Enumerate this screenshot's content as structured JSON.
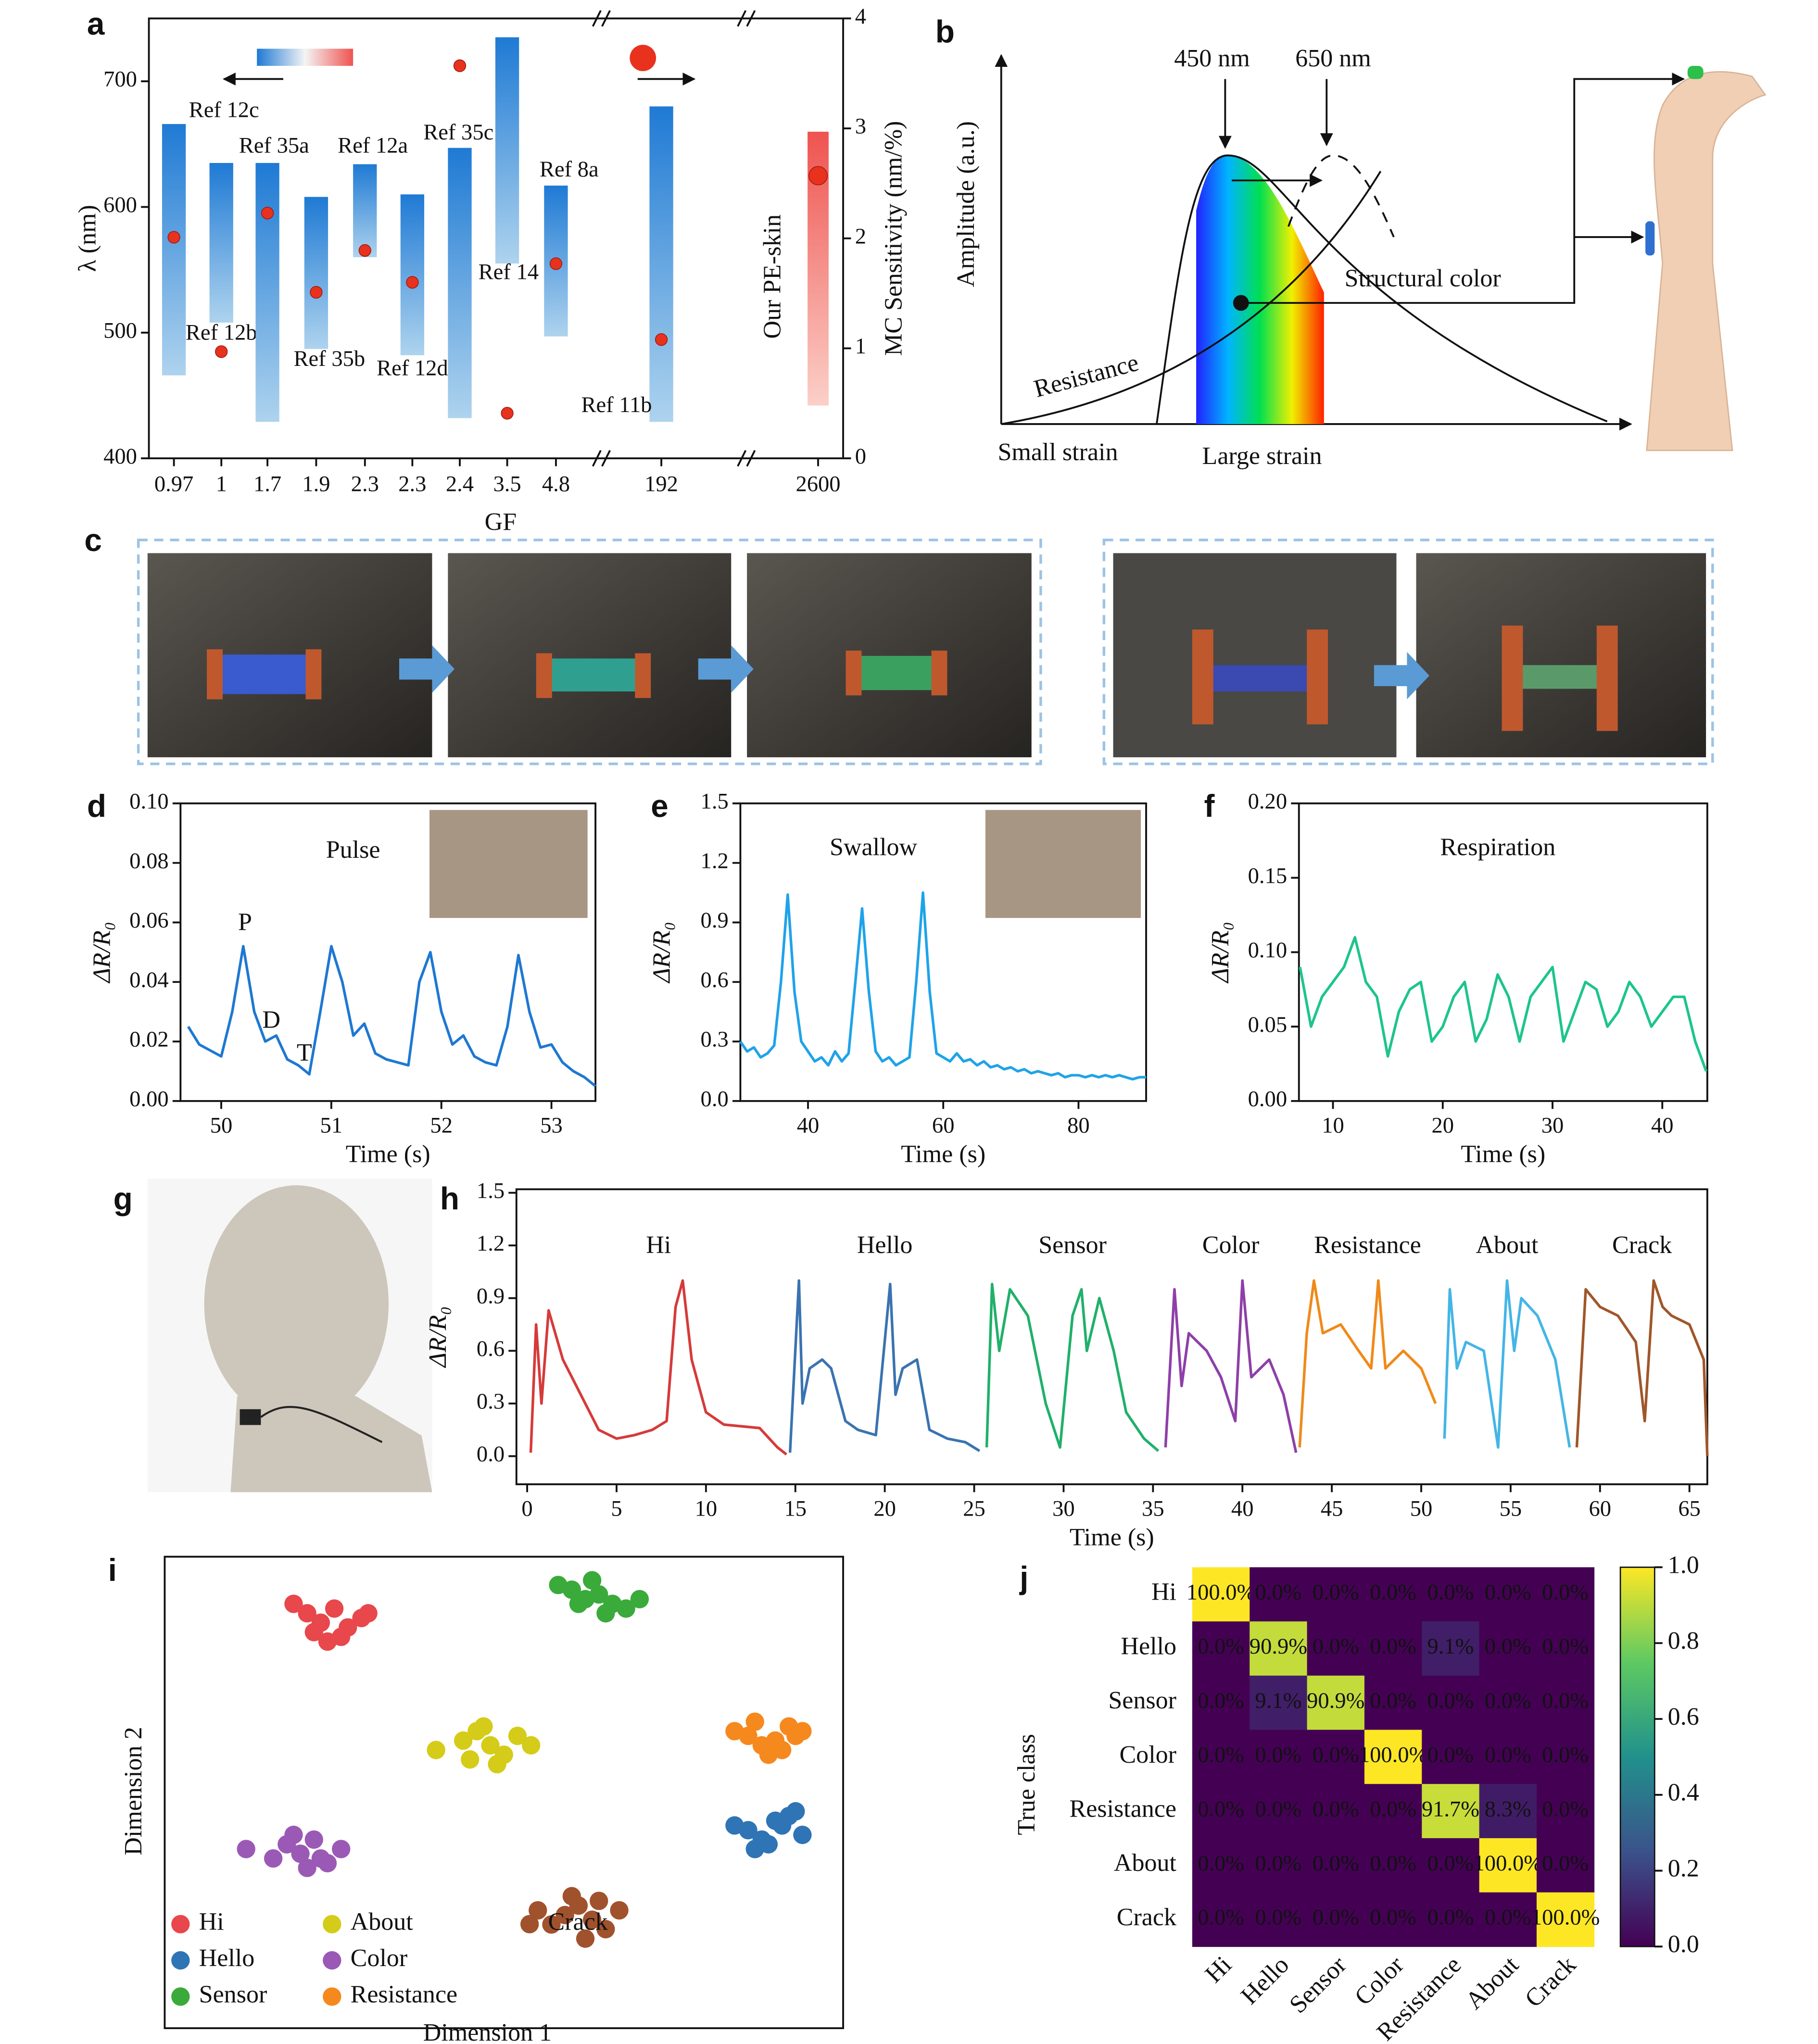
{
  "schematic": {
    "panel": "b",
    "y_label": "Amplitude (a.u.)",
    "peak_labels": [
      "450 nm",
      "650 nm"
    ],
    "curve_labels": [
      "Resistance",
      "Structural color"
    ],
    "x_labels": [
      "Small strain",
      "Large strain"
    ]
  },
  "photos": {
    "panel": "c"
  },
  "render": {
    "panel": "g"
  },
  "chart_data": [
    {
      "type": "range_bar",
      "panel": "a",
      "x_label": "GF",
      "y_label": "λ (nm)",
      "y2_label": "MC Sensitivity (nm/%)",
      "categories": [
        "0.97",
        "1",
        "1.7",
        "1.9",
        "2.3",
        "2.3",
        "2.4",
        "3.5",
        "4.8",
        "192",
        "2600"
      ],
      "low": [
        466,
        508,
        429,
        487,
        560,
        482,
        432,
        555,
        497,
        429,
        null
      ],
      "high": [
        666,
        635,
        635,
        608,
        634,
        610,
        647,
        735,
        617,
        680,
        null
      ],
      "bar_labels": [
        "Ref 12c",
        "Ref 12b",
        "Ref 35a",
        "Ref 35b",
        "Ref 12a",
        "Ref 12d",
        "Ref 35c",
        "Ref 14",
        "Ref 8a",
        "Ref 11b",
        null
      ],
      "sensitivity": {
        "axis": "y2",
        "values": [
          2.01,
          0.97,
          2.23,
          1.51,
          1.89,
          1.6,
          3.57,
          0.41,
          1.77,
          1.08,
          2.57
        ]
      },
      "our_range": {
        "name": "Our PE-skin",
        "axis": "y2",
        "low": 0.48,
        "high": 2.97
      },
      "ylim": [
        400,
        750
      ],
      "yticks": [
        400,
        500,
        600,
        700
      ],
      "y2lim": [
        0,
        4
      ],
      "y2ticks": [
        0,
        1,
        2,
        3,
        4
      ],
      "bar_color": "#1f7ad4",
      "dot_color": "#e8321e",
      "our_color": "#ef5350"
    },
    {
      "type": "line",
      "panel": "d",
      "title": "Pulse",
      "annotations": [
        "P",
        "D",
        "T"
      ],
      "x_label": "Time (s)",
      "y_label": "ΔR/R₀",
      "color": "#1e78d2",
      "x": [
        49.7,
        49.8,
        49.9,
        50.0,
        50.1,
        50.2,
        50.3,
        50.4,
        50.5,
        50.6,
        50.7,
        50.8,
        50.9,
        51.0,
        51.1,
        51.2,
        51.3,
        51.4,
        51.5,
        51.6,
        51.7,
        51.8,
        51.9,
        52.0,
        52.1,
        52.2,
        52.3,
        52.4,
        52.5,
        52.6,
        52.7,
        52.8,
        52.9,
        53.0,
        53.1,
        53.2,
        53.3,
        53.4
      ],
      "values": [
        0.025,
        0.019,
        0.017,
        0.015,
        0.03,
        0.052,
        0.03,
        0.02,
        0.022,
        0.014,
        0.012,
        0.009,
        0.03,
        0.052,
        0.04,
        0.022,
        0.026,
        0.016,
        0.014,
        0.013,
        0.012,
        0.04,
        0.05,
        0.03,
        0.019,
        0.022,
        0.015,
        0.013,
        0.012,
        0.025,
        0.049,
        0.03,
        0.018,
        0.019,
        0.013,
        0.01,
        0.008,
        0.005
      ],
      "xlim": [
        49.63,
        53.4
      ],
      "xticks": [
        50,
        51,
        52,
        53
      ],
      "ylim": [
        0,
        0.1
      ],
      "yticks": [
        {
          "value": 0,
          "label": "0.00"
        },
        0.02,
        0.04,
        0.06,
        0.08,
        {
          "value": 0.1,
          "label": "0.10"
        }
      ]
    },
    {
      "type": "line",
      "panel": "e",
      "title": "Swallow",
      "x_label": "Time (s)",
      "y_label": "ΔR/R₀",
      "color": "#1fa3e8",
      "x": [
        30,
        31,
        32,
        33,
        34,
        35,
        36,
        37,
        38,
        39,
        40,
        41,
        42,
        43,
        44,
        45,
        46,
        47,
        48,
        49,
        50,
        51,
        52,
        53,
        54,
        55,
        56,
        57,
        58,
        59,
        60,
        61,
        62,
        63,
        64,
        65,
        66,
        67,
        68,
        69,
        70,
        71,
        72,
        73,
        74,
        75,
        76,
        77,
        78,
        79,
        80,
        81,
        82,
        83,
        84,
        85,
        86,
        87,
        88,
        89,
        90
      ],
      "values": [
        0.3,
        0.25,
        0.27,
        0.22,
        0.24,
        0.28,
        0.6,
        1.04,
        0.55,
        0.3,
        0.25,
        0.2,
        0.22,
        0.18,
        0.25,
        0.2,
        0.24,
        0.6,
        0.97,
        0.55,
        0.25,
        0.2,
        0.22,
        0.18,
        0.2,
        0.22,
        0.6,
        1.05,
        0.55,
        0.24,
        0.22,
        0.2,
        0.24,
        0.2,
        0.21,
        0.18,
        0.2,
        0.17,
        0.18,
        0.16,
        0.17,
        0.15,
        0.16,
        0.14,
        0.15,
        0.14,
        0.13,
        0.14,
        0.12,
        0.13,
        0.13,
        0.12,
        0.13,
        0.12,
        0.13,
        0.12,
        0.13,
        0.12,
        0.11,
        0.12,
        0.12
      ],
      "xlim": [
        30,
        90
      ],
      "xticks": [
        40,
        60,
        80
      ],
      "ylim": [
        0,
        1.5
      ],
      "yticks": [
        {
          "value": 0,
          "label": "0.0"
        },
        0.3,
        0.6,
        0.9,
        1.2,
        1.5
      ]
    },
    {
      "type": "line",
      "panel": "f",
      "title": "Respiration",
      "x_label": "Time (s)",
      "y_label": "ΔR/R₀",
      "color": "#1dc58a",
      "x": [
        7,
        8,
        9,
        10,
        11,
        12,
        13,
        14,
        15,
        16,
        17,
        18,
        19,
        20,
        21,
        22,
        23,
        24,
        25,
        26,
        27,
        28,
        29,
        30,
        31,
        32,
        33,
        34,
        35,
        36,
        37,
        38,
        39,
        40,
        41,
        42,
        43,
        44
      ],
      "values": [
        0.09,
        0.05,
        0.07,
        0.08,
        0.09,
        0.11,
        0.08,
        0.07,
        0.03,
        0.06,
        0.075,
        0.08,
        0.04,
        0.05,
        0.07,
        0.08,
        0.04,
        0.055,
        0.085,
        0.07,
        0.04,
        0.07,
        0.08,
        0.09,
        0.04,
        0.06,
        0.08,
        0.075,
        0.05,
        0.06,
        0.08,
        0.07,
        0.05,
        0.06,
        0.07,
        0.07,
        0.04,
        0.02
      ],
      "xlim": [
        6.9,
        44.1
      ],
      "xticks": [
        10,
        20,
        30,
        40
      ],
      "ylim": [
        0,
        0.2
      ],
      "yticks": [
        {
          "value": 0,
          "label": "0.00"
        },
        0.05,
        {
          "value": 0.1,
          "label": "0.10"
        },
        0.15,
        {
          "value": 0.2,
          "label": "0.20"
        }
      ]
    },
    {
      "type": "line",
      "panel": "h",
      "x_label": "Time (s)",
      "y_label": "ΔR/R₀",
      "series": [
        {
          "name": "Hi",
          "color": "#d63a3a",
          "x": [
            0.2,
            0.5,
            0.8,
            1.2,
            2,
            3,
            4,
            5,
            6,
            7,
            7.8,
            8.3,
            8.7,
            9.2,
            10,
            11,
            12,
            13,
            14,
            14.5
          ],
          "values": [
            0.02,
            0.75,
            0.3,
            0.83,
            0.55,
            0.35,
            0.15,
            0.1,
            0.12,
            0.15,
            0.2,
            0.85,
            1.0,
            0.55,
            0.25,
            0.18,
            0.17,
            0.16,
            0.05,
            0.01
          ]
        },
        {
          "name": "Hello",
          "color": "#3a73b0",
          "x": [
            14.7,
            15.2,
            15.4,
            15.8,
            16.5,
            17,
            17.8,
            18.5,
            19.5,
            20.3,
            20.6,
            21,
            21.8,
            22.5,
            23.5,
            24.5,
            25.3
          ],
          "values": [
            0.02,
            1.0,
            0.3,
            0.5,
            0.55,
            0.5,
            0.2,
            0.15,
            0.12,
            0.98,
            0.35,
            0.5,
            0.55,
            0.15,
            0.1,
            0.08,
            0.03
          ]
        },
        {
          "name": "Sensor",
          "color": "#20b06a",
          "x": [
            25.7,
            26,
            26.4,
            27,
            28,
            29,
            29.8,
            30.5,
            31,
            31.3,
            32,
            32.8,
            33.5,
            34.5,
            35.3
          ],
          "values": [
            0.05,
            0.98,
            0.6,
            0.95,
            0.8,
            0.3,
            0.05,
            0.8,
            0.95,
            0.6,
            0.9,
            0.6,
            0.25,
            0.1,
            0.03
          ]
        },
        {
          "name": "Color",
          "color": "#8e3fa8",
          "x": [
            35.7,
            36.2,
            36.6,
            37,
            38,
            38.8,
            39.6,
            40,
            40.5,
            41.5,
            42.3,
            43
          ],
          "values": [
            0.05,
            0.95,
            0.4,
            0.7,
            0.6,
            0.45,
            0.2,
            1.0,
            0.45,
            0.55,
            0.35,
            0.02
          ]
        },
        {
          "name": "Resistance",
          "color": "#ef8a1a",
          "x": [
            43.2,
            43.6,
            44,
            44.5,
            45.5,
            46.5,
            47.2,
            47.6,
            48,
            49,
            50,
            50.8
          ],
          "values": [
            0.05,
            0.7,
            1.0,
            0.7,
            0.75,
            0.6,
            0.5,
            1.0,
            0.5,
            0.6,
            0.5,
            0.3
          ]
        },
        {
          "name": "About",
          "color": "#44b5e6",
          "x": [
            51.3,
            51.6,
            52,
            52.5,
            53.5,
            54.3,
            54.8,
            55.2,
            55.6,
            56.5,
            57.5,
            58.3
          ],
          "values": [
            0.1,
            0.95,
            0.5,
            0.65,
            0.6,
            0.05,
            1.0,
            0.6,
            0.9,
            0.8,
            0.55,
            0.05
          ]
        },
        {
          "name": "Crack",
          "color": "#a0562a",
          "x": [
            58.7,
            59.2,
            60,
            61,
            62,
            62.5,
            63,
            63.5,
            64,
            65,
            65.8,
            66.0
          ],
          "values": [
            0.05,
            0.95,
            0.85,
            0.8,
            0.65,
            0.2,
            1.0,
            0.85,
            0.8,
            0.75,
            0.55,
            0.0
          ]
        }
      ],
      "xlim": [
        -0.6,
        66.0
      ],
      "xticks": [
        0,
        5,
        10,
        15,
        20,
        25,
        30,
        35,
        40,
        45,
        50,
        55,
        60,
        65
      ],
      "ylim": [
        -0.16,
        1.52
      ],
      "yticks": [
        {
          "value": 0,
          "label": "0.0"
        },
        0.3,
        0.6,
        0.9,
        1.2,
        1.5
      ]
    },
    {
      "type": "scatter",
      "panel": "i",
      "x_label": "Dimension 1",
      "y_label": "Dimension 2",
      "xlim": [
        0,
        100
      ],
      "ylim": [
        0,
        100
      ],
      "series": [
        {
          "name": "Hi",
          "color": "#e8474b",
          "x": [
            19,
            21,
            23,
            25,
            27,
            29,
            22,
            26,
            30,
            24
          ],
          "values": [
            90,
            88,
            86,
            89,
            85,
            87,
            84,
            83,
            88,
            82
          ]
        },
        {
          "name": "Hello",
          "color": "#2f74b5",
          "x": [
            84,
            86,
            88,
            90,
            92,
            94,
            89,
            91,
            93,
            87
          ],
          "values": [
            43,
            42,
            40,
            44,
            45,
            41,
            39,
            43,
            46,
            38
          ]
        },
        {
          "name": "Sensor",
          "color": "#3aaa3a",
          "x": [
            58,
            60,
            62,
            64,
            66,
            68,
            63,
            65,
            70,
            61
          ],
          "values": [
            94,
            93,
            91,
            92,
            90,
            89,
            95,
            88,
            91,
            90
          ]
        },
        {
          "name": "About",
          "color": "#d4cc18",
          "x": [
            40,
            44,
            46,
            48,
            50,
            52,
            47,
            45,
            54,
            49
          ],
          "values": [
            59,
            61,
            63,
            60,
            58,
            62,
            64,
            57,
            60,
            56
          ]
        },
        {
          "name": "Color",
          "color": "#9b59b6",
          "x": [
            12,
            16,
            18,
            20,
            22,
            24,
            26,
            21,
            19,
            23
          ],
          "values": [
            38,
            36,
            39,
            37,
            40,
            35,
            38,
            34,
            41,
            36
          ]
        },
        {
          "name": "Resistance",
          "color": "#f5891e",
          "x": [
            84,
            86,
            88,
            90,
            92,
            94,
            89,
            91,
            87,
            93
          ],
          "values": [
            63,
            62,
            60,
            61,
            64,
            63,
            58,
            59,
            65,
            62
          ]
        },
        {
          "name": "Crack",
          "color": "#a0522d",
          "x": [
            55,
            57,
            59,
            61,
            63,
            65,
            67,
            60,
            62,
            64
          ],
          "values": [
            25,
            22,
            24,
            26,
            23,
            21,
            25,
            28,
            19,
            27
          ]
        }
      ]
    },
    {
      "type": "heatmap",
      "panel": "j",
      "y_label": "True class",
      "colormap": "viridis",
      "categories": [
        "Hi",
        "Hello",
        "Sensor",
        "Color",
        "Resistance",
        "About",
        "Crack"
      ],
      "values": [
        [
          1,
          0,
          0,
          0,
          0,
          0,
          0
        ],
        [
          0,
          0.909,
          0,
          0,
          0.091,
          0,
          0
        ],
        [
          0,
          0.091,
          0.909,
          0,
          0,
          0,
          0
        ],
        [
          0,
          0,
          0,
          1,
          0,
          0,
          0
        ],
        [
          0,
          0,
          0,
          0,
          0.917,
          0.083,
          0
        ],
        [
          0,
          0,
          0,
          0,
          0,
          1,
          0
        ],
        [
          0,
          0,
          0,
          0,
          0,
          0,
          1
        ]
      ],
      "value_labels": [
        [
          "100.0%",
          "0.0%",
          "0.0%",
          "0.0%",
          "0.0%",
          "0.0%",
          "0.0%"
        ],
        [
          "0.0%",
          "90.9%",
          "0.0%",
          "0.0%",
          "9.1%",
          "0.0%",
          "0.0%"
        ],
        [
          "0.0%",
          "9.1%",
          "90.9%",
          "0.0%",
          "0.0%",
          "0.0%",
          "0.0%"
        ],
        [
          "0.0%",
          "0.0%",
          "0.0%",
          "100.0%",
          "0.0%",
          "0.0%",
          "0.0%"
        ],
        [
          "0.0%",
          "0.0%",
          "0.0%",
          "0.0%",
          "91.7%",
          "8.3%",
          "0.0%"
        ],
        [
          "0.0%",
          "0.0%",
          "0.0%",
          "0.0%",
          "0.0%",
          "100.0%",
          "0.0%"
        ],
        [
          "0.0%",
          "0.0%",
          "0.0%",
          "0.0%",
          "0.0%",
          "0.0%",
          "100.0%"
        ]
      ],
      "clim": [
        0,
        1
      ],
      "cticks": [
        {
          "value": 0,
          "label": "0.0"
        },
        0.2,
        0.4,
        0.6,
        0.8,
        {
          "value": 1,
          "label": "1.0"
        }
      ]
    }
  ]
}
